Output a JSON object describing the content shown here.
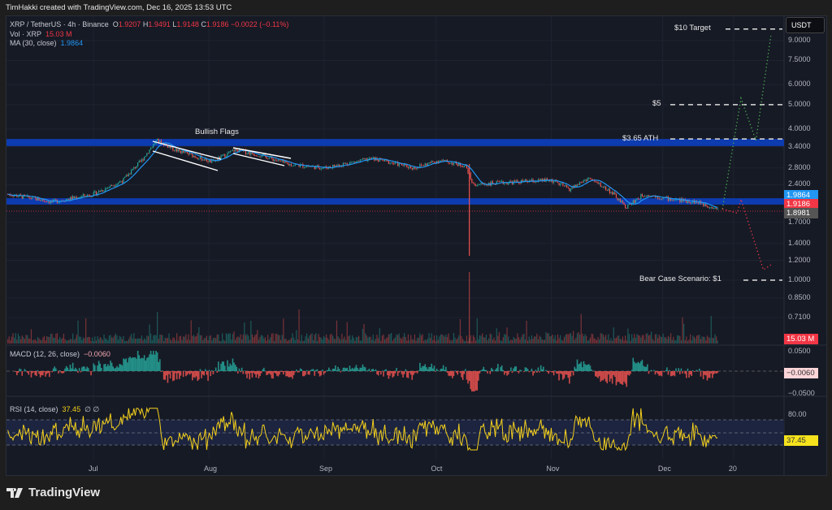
{
  "credit": "TimHakki created with TradingView.com, Dec 16, 2025 13:53 UTC",
  "symbol": {
    "name": "XRP / TetherUS · 4h · Binance",
    "o_label": "O",
    "open": "1.9207",
    "h_label": "H",
    "high": "1.9491",
    "l_label": "L",
    "low": "1.9148",
    "c_label": "C",
    "close": "1.9186",
    "change": "−0.0022 (−0.11%)"
  },
  "volume": {
    "label": "Vol · XRP",
    "value": "15.03 M"
  },
  "ma": {
    "label": "MA (30, close)",
    "value": "1.9864"
  },
  "macd": {
    "label": "MACD (12, 26, close)",
    "value": "−0.0060",
    "axis": [
      "0.0500",
      "−0.0500"
    ]
  },
  "rsi": {
    "label": "RSI (14, close)",
    "value": "37.45",
    "icons": "∅ ∅",
    "axis": "80.00"
  },
  "currency": "USDT",
  "price_axis": [
    "9.0000",
    "7.5000",
    "6.0000",
    "5.0000",
    "4.0000",
    "3.4000",
    "2.8000",
    "2.4000",
    "1.7000",
    "1.4000",
    "1.2000",
    "1.0000",
    "0.8500",
    "0.7100"
  ],
  "price_tags": {
    "ma": "1.9864",
    "close": "1.9186",
    "level": "1.8981",
    "volume": "15.03 M"
  },
  "time_axis": [
    "Jul",
    "Aug",
    "Sep",
    "Oct",
    "Nov",
    "Dec",
    "20"
  ],
  "annotations": {
    "flags": "Bullish Flags",
    "target10": "$10 Target",
    "target5": "$5",
    "ath": "$3.65 ATH",
    "bear": "Bear Case Scenario: $1"
  },
  "levels": {
    "target10": 10,
    "target5": 5,
    "ath": 3.65,
    "bear": 1
  },
  "zones": [
    [
      3.42,
      3.65
    ],
    [
      2.0,
      2.12
    ]
  ],
  "price_path": [
    [
      "2025-06-08",
      2.2
    ],
    [
      "2025-06-20",
      2.05
    ],
    [
      "2025-07-01",
      2.2
    ],
    [
      "2025-07-09",
      2.5
    ],
    [
      "2025-07-14",
      3.0
    ],
    [
      "2025-07-18",
      3.6
    ],
    [
      "2025-07-23",
      3.3
    ],
    [
      "2025-08-02",
      2.95
    ],
    [
      "2025-08-08",
      3.3
    ],
    [
      "2025-08-15",
      3.15
    ],
    [
      "2025-08-22",
      2.9
    ],
    [
      "2025-09-01",
      2.8
    ],
    [
      "2025-09-14",
      3.05
    ],
    [
      "2025-09-25",
      2.8
    ],
    [
      "2025-10-02",
      3.0
    ],
    [
      "2025-10-09",
      2.85
    ],
    [
      "2025-10-11",
      2.4
    ],
    [
      "2025-10-20",
      2.45
    ],
    [
      "2025-11-01",
      2.5
    ],
    [
      "2025-11-06",
      2.3
    ],
    [
      "2025-11-11",
      2.55
    ],
    [
      "2025-11-17",
      2.25
    ],
    [
      "2025-11-21",
      1.95
    ],
    [
      "2025-11-26",
      2.2
    ],
    [
      "2025-12-03",
      2.1
    ],
    [
      "2025-12-10",
      2.05
    ],
    [
      "2025-12-16",
      1.92
    ]
  ],
  "flash_wick_low": 1.25,
  "projection_bull": [
    [
      "2025-12-17",
      1.92
    ],
    [
      "2025-12-22",
      5.3
    ],
    [
      "2025-12-26",
      3.6
    ],
    [
      "2025-12-30",
      9.4
    ]
  ],
  "projection_bear": [
    [
      "2025-12-17",
      1.92
    ],
    [
      "2025-12-21",
      1.85
    ],
    [
      "2025-12-22",
      2.1
    ],
    [
      "2025-12-28",
      1.1
    ],
    [
      "2025-12-30",
      1.15
    ]
  ],
  "colors": {
    "up": "#26a69a",
    "down": "#ef5350",
    "ma": "#2196f3",
    "zone": "#0d3bb0",
    "rsi": "#f5d11c",
    "bull": "#4caf50",
    "bear": "#f23645"
  },
  "brand": "TradingView"
}
